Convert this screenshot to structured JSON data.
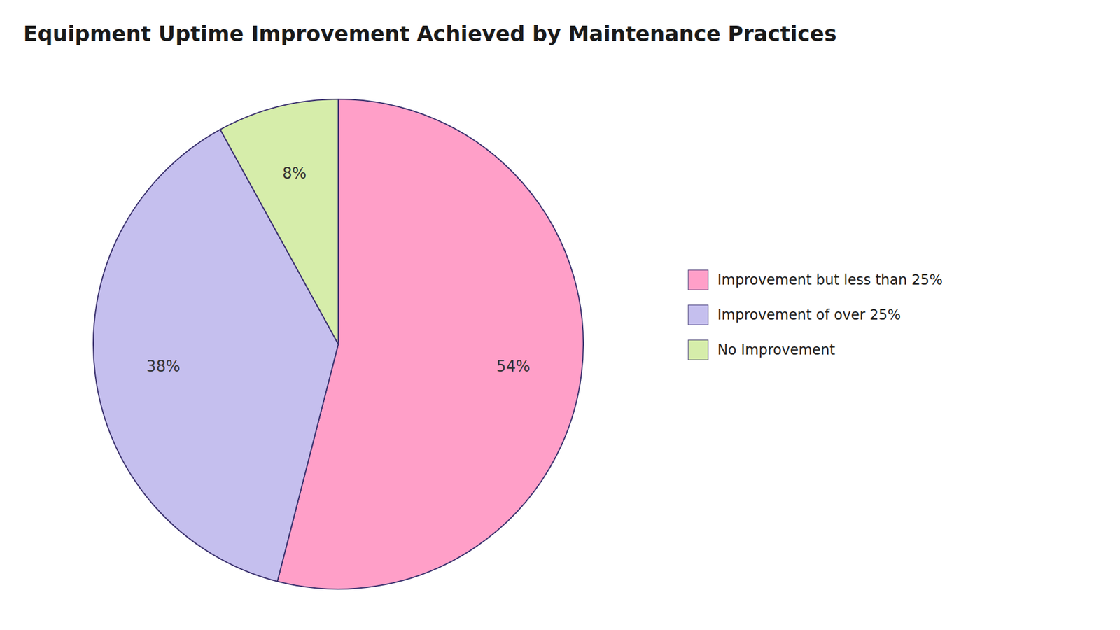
{
  "chart_data": {
    "type": "pie",
    "title": "Equipment Uptime Improvement Achieved by Maintenance Practices",
    "categories": [
      "Improvement but less than 25%",
      "Improvement of over 25%",
      "No Improvement"
    ],
    "values": [
      54,
      38,
      8
    ],
    "value_labels": [
      "54%",
      "38%",
      "8%"
    ],
    "colors": [
      "#FF9FC8",
      "#C5BFEE",
      "#D6EDAA"
    ],
    "data_labels": true,
    "legend": "right"
  }
}
